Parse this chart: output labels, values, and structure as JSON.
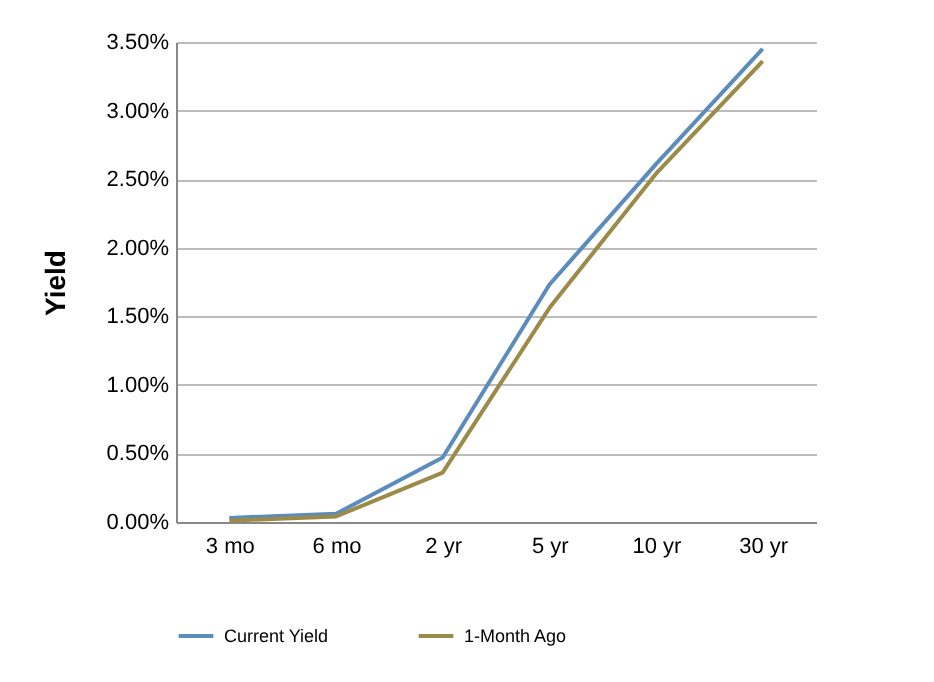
{
  "chart_data": {
    "type": "line",
    "ylabel": "Yield",
    "categories": [
      "3 mo",
      "6 mo",
      "2 yr",
      "5 yr",
      "10 yr",
      "30 yr"
    ],
    "series": [
      {
        "name": "Current Yield",
        "color": "#5b8cbc",
        "values": [
          0.03,
          0.06,
          0.47,
          1.73,
          2.61,
          3.45
        ]
      },
      {
        "name": "1-Month Ago",
        "color": "#9c8a48",
        "values": [
          0.01,
          0.04,
          0.36,
          1.56,
          2.54,
          3.36
        ]
      }
    ],
    "ylim": [
      0,
      3.5
    ],
    "yticks": [
      {
        "value": 0,
        "label": "0.00%"
      },
      {
        "value": 0.5,
        "label": "0.50%"
      },
      {
        "value": 1,
        "label": "1.00%"
      },
      {
        "value": 1.5,
        "label": "1.50%"
      },
      {
        "value": 2,
        "label": "2.00%"
      },
      {
        "value": 2.5,
        "label": "2.50%"
      },
      {
        "value": 3,
        "label": "3.00%"
      },
      {
        "value": 3.5,
        "label": "3.50%"
      }
    ],
    "grid": "y",
    "legend": "bottom",
    "line_style": "solid",
    "marker": "none"
  }
}
